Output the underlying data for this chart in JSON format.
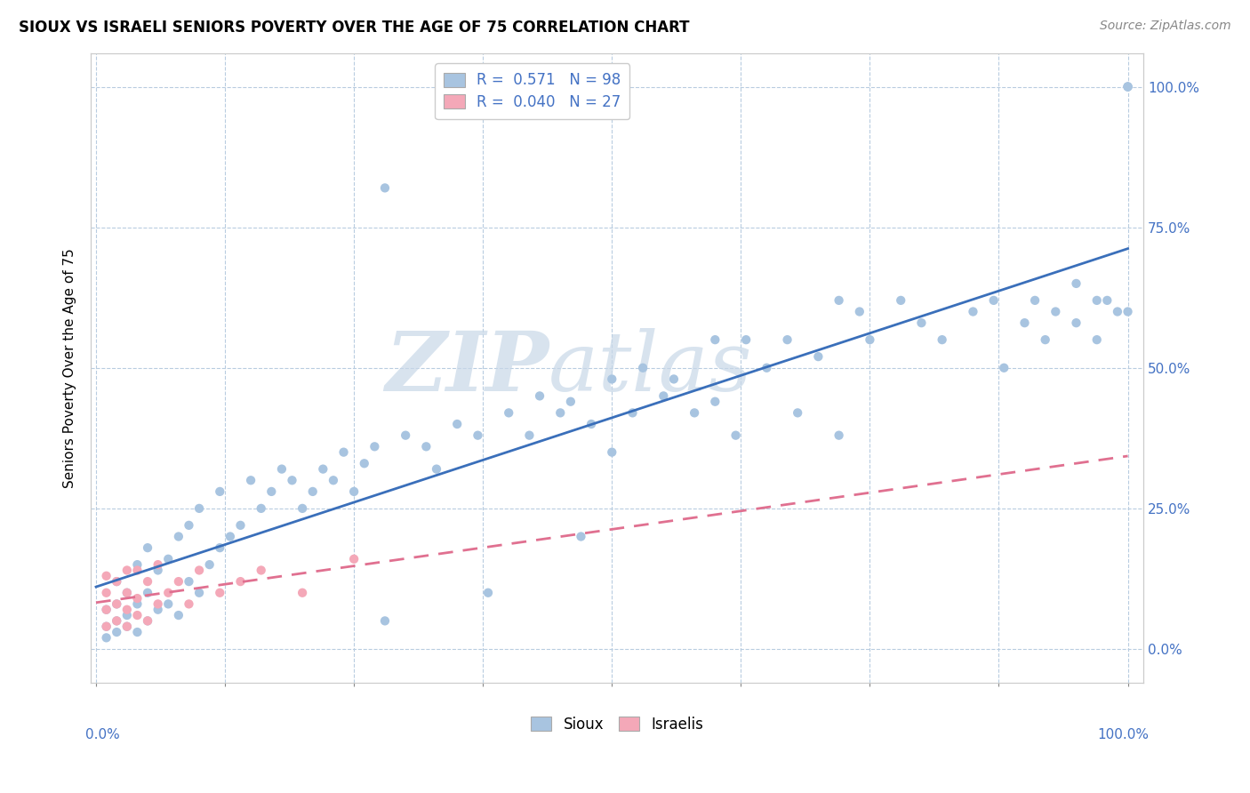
{
  "title": "SIOUX VS ISRAELI SENIORS POVERTY OVER THE AGE OF 75 CORRELATION CHART",
  "source": "Source: ZipAtlas.com",
  "ylabel": "Seniors Poverty Over the Age of 75",
  "sioux_color": "#a8c4e0",
  "israelis_color": "#f4a8b8",
  "sioux_line_color": "#3a6fba",
  "israelis_line_color": "#e07090",
  "ytick_vals": [
    0.0,
    0.25,
    0.5,
    0.75,
    1.0
  ],
  "sioux_x": [
    0.01,
    0.01,
    0.01,
    0.02,
    0.02,
    0.02,
    0.02,
    0.03,
    0.03,
    0.03,
    0.04,
    0.04,
    0.04,
    0.05,
    0.05,
    0.05,
    0.06,
    0.06,
    0.07,
    0.07,
    0.08,
    0.08,
    0.09,
    0.09,
    0.1,
    0.1,
    0.11,
    0.12,
    0.12,
    0.13,
    0.14,
    0.15,
    0.16,
    0.17,
    0.18,
    0.19,
    0.2,
    0.21,
    0.22,
    0.23,
    0.24,
    0.25,
    0.26,
    0.27,
    0.28,
    0.3,
    0.32,
    0.33,
    0.35,
    0.37,
    0.38,
    0.4,
    0.42,
    0.43,
    0.45,
    0.46,
    0.47,
    0.48,
    0.5,
    0.5,
    0.52,
    0.53,
    0.55,
    0.56,
    0.58,
    0.6,
    0.62,
    0.63,
    0.65,
    0.67,
    0.68,
    0.7,
    0.72,
    0.74,
    0.75,
    0.78,
    0.8,
    0.82,
    0.85,
    0.87,
    0.88,
    0.9,
    0.91,
    0.92,
    0.93,
    0.95,
    0.97,
    0.98,
    0.99,
    1.0,
    1.0,
    1.0,
    1.0,
    0.28,
    0.6,
    0.72,
    0.95,
    0.97
  ],
  "sioux_y": [
    0.04,
    0.02,
    0.07,
    0.03,
    0.08,
    0.05,
    0.12,
    0.04,
    0.06,
    0.1,
    0.03,
    0.08,
    0.15,
    0.05,
    0.1,
    0.18,
    0.07,
    0.14,
    0.08,
    0.16,
    0.06,
    0.2,
    0.12,
    0.22,
    0.1,
    0.25,
    0.15,
    0.18,
    0.28,
    0.2,
    0.22,
    0.3,
    0.25,
    0.28,
    0.32,
    0.3,
    0.25,
    0.28,
    0.32,
    0.3,
    0.35,
    0.28,
    0.33,
    0.36,
    0.05,
    0.38,
    0.36,
    0.32,
    0.4,
    0.38,
    0.1,
    0.42,
    0.38,
    0.45,
    0.42,
    0.44,
    0.2,
    0.4,
    0.48,
    0.35,
    0.42,
    0.5,
    0.45,
    0.48,
    0.42,
    0.44,
    0.38,
    0.55,
    0.5,
    0.55,
    0.42,
    0.52,
    0.38,
    0.6,
    0.55,
    0.62,
    0.58,
    0.55,
    0.6,
    0.62,
    0.5,
    0.58,
    0.62,
    0.55,
    0.6,
    0.65,
    0.55,
    0.62,
    0.6,
    1.0,
    1.0,
    1.0,
    0.6,
    0.82,
    0.55,
    0.62,
    0.58,
    0.62
  ],
  "israelis_x": [
    0.01,
    0.01,
    0.01,
    0.01,
    0.02,
    0.02,
    0.02,
    0.03,
    0.03,
    0.03,
    0.03,
    0.04,
    0.04,
    0.04,
    0.05,
    0.05,
    0.06,
    0.06,
    0.07,
    0.08,
    0.09,
    0.1,
    0.12,
    0.14,
    0.16,
    0.2,
    0.25
  ],
  "israelis_y": [
    0.04,
    0.07,
    0.1,
    0.13,
    0.05,
    0.08,
    0.12,
    0.04,
    0.07,
    0.1,
    0.14,
    0.06,
    0.09,
    0.14,
    0.05,
    0.12,
    0.08,
    0.15,
    0.1,
    0.12,
    0.08,
    0.14,
    0.1,
    0.12,
    0.14,
    0.1,
    0.16
  ]
}
